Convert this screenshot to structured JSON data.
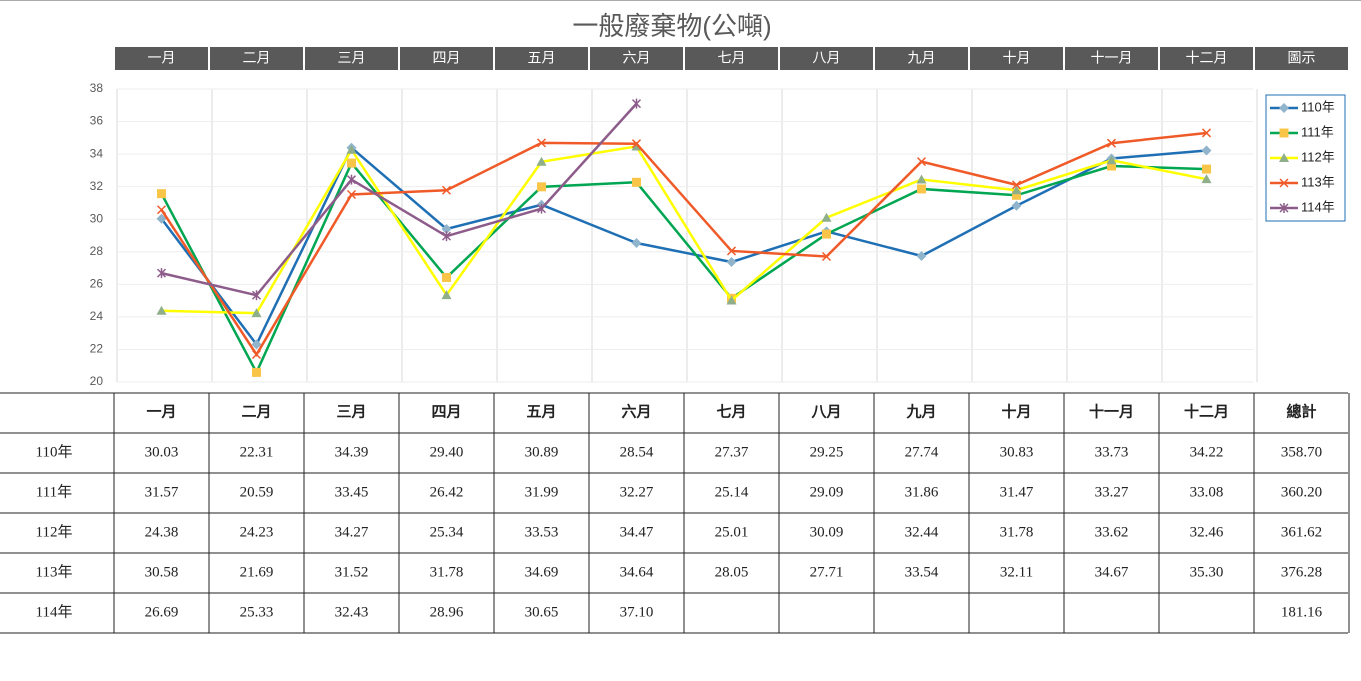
{
  "chart_data": {
    "type": "line",
    "title": "一般廢棄物(公噸)",
    "legend_header": "圖示",
    "categories": [
      "一月",
      "二月",
      "三月",
      "四月",
      "五月",
      "六月",
      "七月",
      "八月",
      "九月",
      "十月",
      "十一月",
      "十二月"
    ],
    "ylim": [
      20,
      38
    ],
    "yticks": [
      20,
      22,
      24,
      26,
      28,
      30,
      32,
      34,
      36,
      38
    ],
    "grid": true,
    "legend": "right",
    "series": [
      {
        "name": "110年",
        "color": "#1f6fb5",
        "marker": "diamond",
        "marker_color": "#8fb4cc",
        "values": [
          30.03,
          22.31,
          34.39,
          29.4,
          30.89,
          28.54,
          27.37,
          29.25,
          27.74,
          30.83,
          33.73,
          34.22
        ],
        "value_labels": [
          "30.03",
          "22.31",
          "34.39",
          "29.40",
          "30.89",
          "28.54",
          "27.37",
          "29.25",
          "27.74",
          "30.83",
          "33.73",
          "34.22"
        ]
      },
      {
        "name": "111年",
        "color": "#00a651",
        "marker": "square",
        "marker_color": "#f9c549",
        "values": [
          31.57,
          20.59,
          33.45,
          26.42,
          31.99,
          32.27,
          25.14,
          29.09,
          31.86,
          31.47,
          33.27,
          33.08
        ],
        "value_labels": [
          "31.57",
          "20.59",
          "33.45",
          "26.42",
          "31.99",
          "32.27",
          "25.14",
          "29.09",
          "31.86",
          "31.47",
          "33.27",
          "33.08"
        ]
      },
      {
        "name": "112年",
        "color": "#ffff00",
        "marker": "triangle",
        "marker_color": "#8fae8a",
        "values": [
          24.38,
          24.23,
          34.27,
          25.34,
          33.53,
          34.47,
          25.01,
          30.09,
          32.44,
          31.78,
          33.62,
          32.46
        ],
        "value_labels": [
          "24.38",
          "24.23",
          "34.27",
          "25.34",
          "33.53",
          "34.47",
          "25.01",
          "30.09",
          "32.44",
          "31.78",
          "33.62",
          "32.46"
        ]
      },
      {
        "name": "113年",
        "color": "#f05a28",
        "marker": "x",
        "marker_color": "#f05a28",
        "values": [
          30.58,
          21.69,
          31.52,
          31.78,
          34.69,
          34.64,
          28.05,
          27.71,
          33.54,
          32.11,
          34.67,
          35.3
        ],
        "value_labels": [
          "30.58",
          "21.69",
          "31.52",
          "31.78",
          "34.69",
          "34.64",
          "28.05",
          "27.71",
          "33.54",
          "32.11",
          "34.67",
          "35.30"
        ]
      },
      {
        "name": "114年",
        "color": "#8e5c8a",
        "marker": "star",
        "marker_color": "#8e5c8a",
        "values": [
          26.69,
          25.33,
          32.43,
          28.96,
          30.65,
          37.1,
          null,
          null,
          null,
          null,
          null,
          null
        ],
        "value_labels": [
          "26.69",
          "25.33",
          "32.43",
          "28.96",
          "30.65",
          "37.10",
          null,
          null,
          null,
          null,
          null,
          null
        ]
      }
    ]
  },
  "table": {
    "total_header": "總計",
    "totals": [
      "358.70",
      "360.20",
      "361.62",
      "376.28",
      "181.16"
    ]
  }
}
